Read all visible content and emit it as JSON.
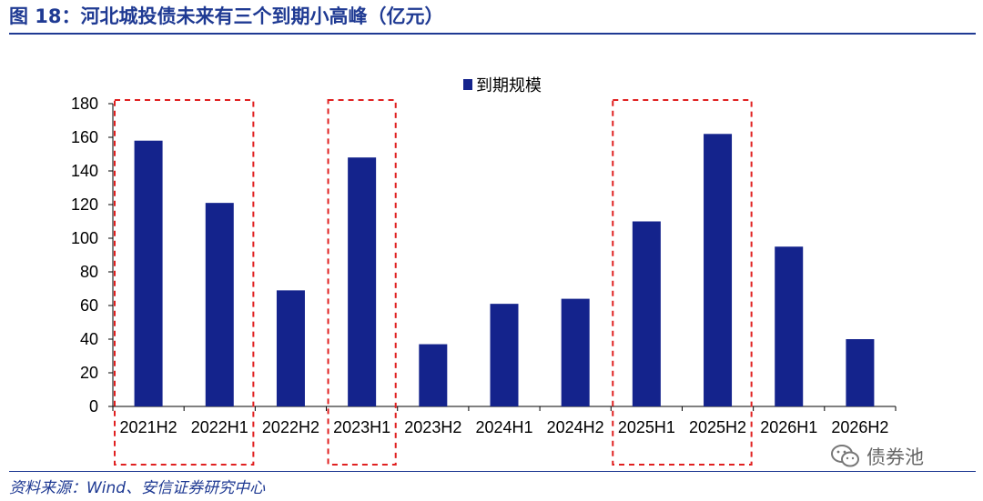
{
  "header": {
    "figure_label": "图 18：",
    "title": "河北城投债未来有三个到期小高峰（亿元）"
  },
  "footer": {
    "source": "资料来源：Wind、安信证券研究中心",
    "watermark": "债券池",
    "watermark_icon": "wechat-icon"
  },
  "chart_data": {
    "type": "bar",
    "categories": [
      "2021H2",
      "2022H1",
      "2022H2",
      "2023H1",
      "2023H2",
      "2024H1",
      "2024H2",
      "2025H1",
      "2025H2",
      "2026H1",
      "2026H2"
    ],
    "series": [
      {
        "name": "到期规模",
        "values": [
          158,
          121,
          69,
          148,
          37,
          61,
          64,
          110,
          162,
          95,
          40
        ]
      }
    ],
    "yticks": [
      0,
      20,
      40,
      60,
      80,
      100,
      120,
      140,
      160,
      180
    ],
    "ylim": [
      0,
      180
    ],
    "bar_color": "#14238c",
    "highlight_groups": [
      [
        "2021H2",
        "2022H1"
      ],
      [
        "2023H1"
      ],
      [
        "2025H1",
        "2025H2"
      ]
    ],
    "highlight_color": "#e02020",
    "legend_position": "top-center",
    "grid": false
  }
}
